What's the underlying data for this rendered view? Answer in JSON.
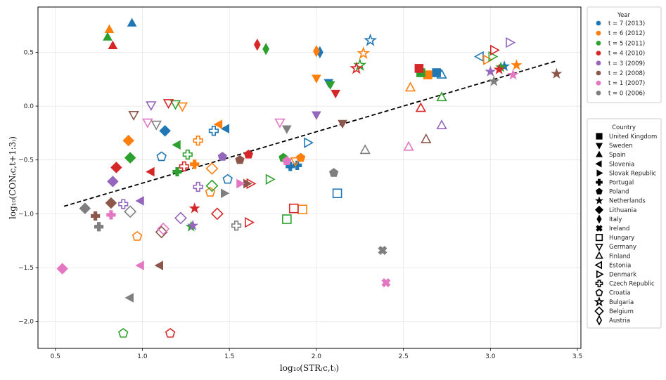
{
  "chart_data": {
    "type": "scatter",
    "xlabel": "log₁₀(STR₍c,t₎)",
    "ylabel": "log₁₀(CON₍c,t+1:3₎)",
    "xlim": [
      0.4,
      3.52
    ],
    "ylim": [
      -2.25,
      0.92
    ],
    "xticks": [
      "0.5",
      "1.0",
      "1.5",
      "2.0",
      "2.5",
      "3.0",
      "3.5"
    ],
    "yticks": [
      "−2.0",
      "−1.5",
      "−1.0",
      "−0.5",
      "0.0",
      "0.5"
    ],
    "grid": true,
    "fit_line": {
      "x": [
        0.55,
        3.38
      ],
      "y": [
        -0.93,
        0.42
      ],
      "style": "dashed",
      "color": "#000000"
    },
    "year_legend": {
      "title": "Year",
      "entries": [
        {
          "label": "t = 7 (2013)",
          "color": "#1f77b4"
        },
        {
          "label": "t = 6 (2012)",
          "color": "#ff7f0e"
        },
        {
          "label": "t = 5 (2011)",
          "color": "#2ca02c"
        },
        {
          "label": "t = 4 (2010)",
          "color": "#d62728"
        },
        {
          "label": "t = 3 (2009)",
          "color": "#9467bd"
        },
        {
          "label": "t = 2 (2008)",
          "color": "#8c564b"
        },
        {
          "label": "t = 1 (2007)",
          "color": "#e377c2"
        },
        {
          "label": "t = 0 (2006)",
          "color": "#7f7f7f"
        }
      ]
    },
    "country_legend": {
      "title": "Country",
      "entries": [
        {
          "label": "United Kingdom",
          "marker": "square",
          "filled": true
        },
        {
          "label": "Sweden",
          "marker": "tri-down",
          "filled": true
        },
        {
          "label": "Spain",
          "marker": "tri-up",
          "filled": true
        },
        {
          "label": "Slovenia",
          "marker": "tri-left",
          "filled": true
        },
        {
          "label": "Slovak Republic",
          "marker": "tri-right",
          "filled": true
        },
        {
          "label": "Portugal",
          "marker": "plus",
          "filled": true
        },
        {
          "label": "Poland",
          "marker": "pentagon",
          "filled": true
        },
        {
          "label": "Netherlands",
          "marker": "star",
          "filled": true
        },
        {
          "label": "Lithuania",
          "marker": "diamond",
          "filled": true
        },
        {
          "label": "Italy",
          "marker": "thin-diamond",
          "filled": true
        },
        {
          "label": "Ireland",
          "marker": "x",
          "filled": true
        },
        {
          "label": "Hungary",
          "marker": "square",
          "filled": false
        },
        {
          "label": "Germany",
          "marker": "tri-down",
          "filled": false
        },
        {
          "label": "Finland",
          "marker": "tri-up",
          "filled": false
        },
        {
          "label": "Estonia",
          "marker": "tri-left",
          "filled": false
        },
        {
          "label": "Denmark",
          "marker": "tri-right",
          "filled": false
        },
        {
          "label": "Czech Republic",
          "marker": "plus",
          "filled": false
        },
        {
          "label": "Croatia",
          "marker": "pentagon",
          "filled": false
        },
        {
          "label": "Bulgaria",
          "marker": "star",
          "filled": false
        },
        {
          "label": "Belgium",
          "marker": "diamond",
          "filled": false
        },
        {
          "label": "Austria",
          "marker": "thin-diamond",
          "filled": false
        }
      ]
    },
    "points": [
      {
        "x": 0.94,
        "y": 0.77,
        "c": 0,
        "m": 2
      },
      {
        "x": 2.02,
        "y": 0.5,
        "c": 0,
        "m": 9
      },
      {
        "x": 2.31,
        "y": 0.61,
        "c": 0,
        "m": 18
      },
      {
        "x": 2.07,
        "y": 0.22,
        "c": 0,
        "m": 1
      },
      {
        "x": 2.69,
        "y": 0.31,
        "c": 0,
        "m": 0
      },
      {
        "x": 2.72,
        "y": 0.29,
        "c": 0,
        "m": 13
      },
      {
        "x": 2.94,
        "y": 0.46,
        "c": 0,
        "m": 14
      },
      {
        "x": 3.08,
        "y": 0.37,
        "c": 0,
        "m": 7
      },
      {
        "x": 1.13,
        "y": -0.23,
        "c": 0,
        "m": 8
      },
      {
        "x": 1.48,
        "y": -0.21,
        "c": 0,
        "m": 3
      },
      {
        "x": 1.41,
        "y": -0.23,
        "c": 0,
        "m": 16
      },
      {
        "x": 1.95,
        "y": -0.34,
        "c": 0,
        "m": 15
      },
      {
        "x": 1.85,
        "y": -0.56,
        "c": 0,
        "m": 5
      },
      {
        "x": 1.49,
        "y": -0.68,
        "c": 0,
        "m": 17
      },
      {
        "x": 1.89,
        "y": -0.55,
        "c": 0,
        "m": 5
      },
      {
        "x": 2.12,
        "y": -0.81,
        "c": 0,
        "m": 11
      },
      {
        "x": 1.11,
        "y": -0.47,
        "c": 0,
        "m": 17
      },
      {
        "x": 0.81,
        "y": 0.71,
        "c": 1,
        "m": 2
      },
      {
        "x": 2.0,
        "y": 0.51,
        "c": 1,
        "m": 9
      },
      {
        "x": 2.27,
        "y": 0.49,
        "c": 1,
        "m": 18
      },
      {
        "x": 2.0,
        "y": 0.26,
        "c": 1,
        "m": 1
      },
      {
        "x": 2.64,
        "y": 0.29,
        "c": 1,
        "m": 0
      },
      {
        "x": 2.98,
        "y": 0.43,
        "c": 1,
        "m": 15
      },
      {
        "x": 3.15,
        "y": 0.38,
        "c": 1,
        "m": 7
      },
      {
        "x": 2.54,
        "y": 0.17,
        "c": 1,
        "m": 13
      },
      {
        "x": 1.23,
        "y": 0.0,
        "c": 1,
        "m": 12
      },
      {
        "x": 0.92,
        "y": -0.32,
        "c": 1,
        "m": 8
      },
      {
        "x": 1.32,
        "y": -0.32,
        "c": 1,
        "m": 16
      },
      {
        "x": 1.44,
        "y": -0.17,
        "c": 1,
        "m": 3
      },
      {
        "x": 1.3,
        "y": -0.54,
        "c": 1,
        "m": 5
      },
      {
        "x": 1.4,
        "y": -0.58,
        "c": 1,
        "m": 19
      },
      {
        "x": 1.39,
        "y": -0.8,
        "c": 1,
        "m": 17
      },
      {
        "x": 1.91,
        "y": -0.48,
        "c": 1,
        "m": 6
      },
      {
        "x": 1.88,
        "y": -0.51,
        "c": 1,
        "m": 12
      },
      {
        "x": 1.92,
        "y": -0.96,
        "c": 1,
        "m": 11
      },
      {
        "x": 0.97,
        "y": -1.21,
        "c": 1,
        "m": 17
      },
      {
        "x": 0.8,
        "y": 0.64,
        "c": 2,
        "m": 2
      },
      {
        "x": 1.71,
        "y": 0.53,
        "c": 2,
        "m": 9
      },
      {
        "x": 2.25,
        "y": 0.38,
        "c": 2,
        "m": 18
      },
      {
        "x": 2.08,
        "y": 0.2,
        "c": 2,
        "m": 1
      },
      {
        "x": 2.6,
        "y": 0.31,
        "c": 2,
        "m": 0
      },
      {
        "x": 3.01,
        "y": 0.46,
        "c": 2,
        "m": 15
      },
      {
        "x": 3.06,
        "y": 0.36,
        "c": 2,
        "m": 7
      },
      {
        "x": 2.72,
        "y": 0.08,
        "c": 2,
        "m": 13
      },
      {
        "x": 1.19,
        "y": 0.02,
        "c": 2,
        "m": 12
      },
      {
        "x": 0.93,
        "y": -0.48,
        "c": 2,
        "m": 8
      },
      {
        "x": 1.2,
        "y": -0.36,
        "c": 2,
        "m": 3
      },
      {
        "x": 1.26,
        "y": -0.45,
        "c": 2,
        "m": 16
      },
      {
        "x": 1.2,
        "y": -0.61,
        "c": 2,
        "m": 5
      },
      {
        "x": 1.4,
        "y": -0.74,
        "c": 2,
        "m": 19
      },
      {
        "x": 1.28,
        "y": -1.12,
        "c": 2,
        "m": 7
      },
      {
        "x": 1.73,
        "y": -0.68,
        "c": 2,
        "m": 15
      },
      {
        "x": 1.81,
        "y": -0.48,
        "c": 2,
        "m": 6
      },
      {
        "x": 1.83,
        "y": -1.05,
        "c": 2,
        "m": 11
      },
      {
        "x": 0.89,
        "y": -2.11,
        "c": 2,
        "m": 17
      },
      {
        "x": 0.83,
        "y": 0.56,
        "c": 3,
        "m": 2
      },
      {
        "x": 1.66,
        "y": 0.57,
        "c": 3,
        "m": 9
      },
      {
        "x": 2.23,
        "y": 0.35,
        "c": 3,
        "m": 18
      },
      {
        "x": 2.11,
        "y": 0.12,
        "c": 3,
        "m": 1
      },
      {
        "x": 2.59,
        "y": 0.35,
        "c": 3,
        "m": 0
      },
      {
        "x": 3.02,
        "y": 0.52,
        "c": 3,
        "m": 15
      },
      {
        "x": 3.05,
        "y": 0.34,
        "c": 3,
        "m": 7
      },
      {
        "x": 2.6,
        "y": -0.02,
        "c": 3,
        "m": 13
      },
      {
        "x": 1.15,
        "y": 0.03,
        "c": 3,
        "m": 12
      },
      {
        "x": 0.85,
        "y": -0.57,
        "c": 3,
        "m": 8
      },
      {
        "x": 1.05,
        "y": -0.61,
        "c": 3,
        "m": 3
      },
      {
        "x": 1.24,
        "y": -0.56,
        "c": 3,
        "m": 16
      },
      {
        "x": 1.61,
        "y": -0.45,
        "c": 3,
        "m": 6
      },
      {
        "x": 1.62,
        "y": -0.72,
        "c": 3,
        "m": 15
      },
      {
        "x": 1.3,
        "y": -0.95,
        "c": 3,
        "m": 7
      },
      {
        "x": 1.61,
        "y": -1.08,
        "c": 3,
        "m": 15
      },
      {
        "x": 1.87,
        "y": -0.95,
        "c": 3,
        "m": 11
      },
      {
        "x": 1.43,
        "y": -1.0,
        "c": 3,
        "m": 19
      },
      {
        "x": 1.16,
        "y": -2.11,
        "c": 3,
        "m": 17
      },
      {
        "x": 2.0,
        "y": -0.08,
        "c": 4,
        "m": 1
      },
      {
        "x": 3.11,
        "y": 0.59,
        "c": 4,
        "m": 15
      },
      {
        "x": 3.0,
        "y": 0.32,
        "c": 4,
        "m": 7
      },
      {
        "x": 2.72,
        "y": -0.18,
        "c": 4,
        "m": 13
      },
      {
        "x": 1.05,
        "y": 0.01,
        "c": 4,
        "m": 12
      },
      {
        "x": 0.83,
        "y": -0.7,
        "c": 4,
        "m": 8
      },
      {
        "x": 1.46,
        "y": -0.47,
        "c": 4,
        "m": 6
      },
      {
        "x": 0.99,
        "y": -0.88,
        "c": 4,
        "m": 3
      },
      {
        "x": 0.89,
        "y": -0.91,
        "c": 4,
        "m": 16
      },
      {
        "x": 1.32,
        "y": -0.75,
        "c": 4,
        "m": 16
      },
      {
        "x": 1.29,
        "y": -1.11,
        "c": 4,
        "m": 7
      },
      {
        "x": 1.22,
        "y": -1.04,
        "c": 4,
        "m": 19
      },
      {
        "x": 3.38,
        "y": 0.3,
        "c": 5,
        "m": 7
      },
      {
        "x": 2.15,
        "y": -0.16,
        "c": 5,
        "m": 1
      },
      {
        "x": 2.63,
        "y": -0.31,
        "c": 5,
        "m": 13
      },
      {
        "x": 1.56,
        "y": -0.5,
        "c": 5,
        "m": 6
      },
      {
        "x": 1.6,
        "y": -0.72,
        "c": 5,
        "m": 4
      },
      {
        "x": 0.95,
        "y": -0.08,
        "c": 5,
        "m": 12
      },
      {
        "x": 0.73,
        "y": -1.02,
        "c": 5,
        "m": 5
      },
      {
        "x": 0.82,
        "y": -0.9,
        "c": 5,
        "m": 8
      },
      {
        "x": 1.1,
        "y": -1.48,
        "c": 5,
        "m": 3
      },
      {
        "x": 1.11,
        "y": -1.17,
        "c": 5,
        "m": 19
      },
      {
        "x": 3.13,
        "y": 0.29,
        "c": 6,
        "m": 7
      },
      {
        "x": 1.79,
        "y": -0.15,
        "c": 6,
        "m": 12
      },
      {
        "x": 2.53,
        "y": -0.38,
        "c": 6,
        "m": 13
      },
      {
        "x": 1.83,
        "y": -0.51,
        "c": 6,
        "m": 6
      },
      {
        "x": 1.56,
        "y": -0.72,
        "c": 6,
        "m": 4
      },
      {
        "x": 1.03,
        "y": -0.15,
        "c": 6,
        "m": 12
      },
      {
        "x": 0.54,
        "y": -1.51,
        "c": 6,
        "m": 8
      },
      {
        "x": 0.82,
        "y": -1.01,
        "c": 6,
        "m": 5
      },
      {
        "x": 0.99,
        "y": -1.48,
        "c": 6,
        "m": 3
      },
      {
        "x": 1.12,
        "y": -1.14,
        "c": 6,
        "m": 19
      },
      {
        "x": 2.4,
        "y": -1.64,
        "c": 6,
        "m": 10
      },
      {
        "x": 3.02,
        "y": 0.23,
        "c": 7,
        "m": 7
      },
      {
        "x": 1.83,
        "y": -0.21,
        "c": 7,
        "m": 1
      },
      {
        "x": 2.28,
        "y": -0.41,
        "c": 7,
        "m": 13
      },
      {
        "x": 2.1,
        "y": -0.62,
        "c": 7,
        "m": 6
      },
      {
        "x": 1.47,
        "y": -0.81,
        "c": 7,
        "m": 4
      },
      {
        "x": 1.08,
        "y": -0.17,
        "c": 7,
        "m": 12
      },
      {
        "x": 0.67,
        "y": -0.95,
        "c": 7,
        "m": 8
      },
      {
        "x": 0.75,
        "y": -1.12,
        "c": 7,
        "m": 5
      },
      {
        "x": 0.93,
        "y": -1.78,
        "c": 7,
        "m": 3
      },
      {
        "x": 0.93,
        "y": -0.98,
        "c": 7,
        "m": 19
      },
      {
        "x": 1.54,
        "y": -1.11,
        "c": 7,
        "m": 16
      },
      {
        "x": 2.38,
        "y": -1.34,
        "c": 7,
        "m": 10
      }
    ]
  }
}
